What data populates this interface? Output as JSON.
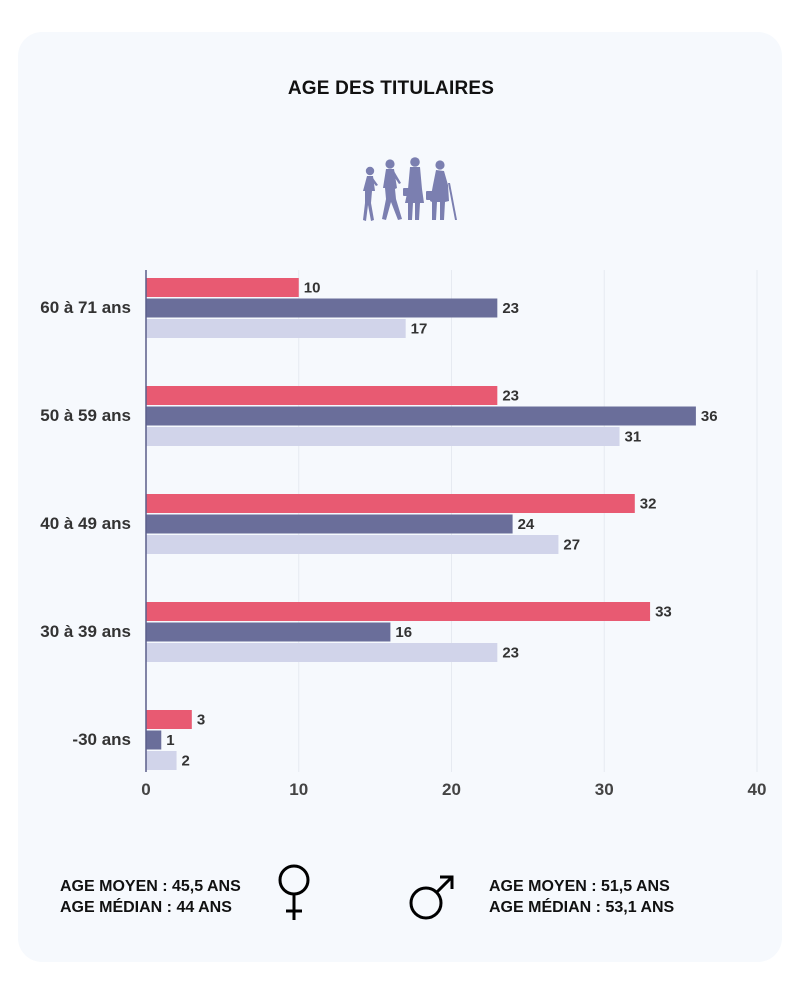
{
  "title": "AGE DES TITULAIRES",
  "people_icon": "people-walking-icon",
  "colors": {
    "series_a": "#e85a72",
    "series_b": "#6a6e9a",
    "series_c": "#d1d4ea",
    "text": "#333333",
    "tick": "#444444"
  },
  "chart_data": {
    "type": "bar",
    "orientation": "horizontal",
    "categories": [
      "60 à 71 ans",
      "50 à 59 ans",
      "40 à 49 ans",
      "30 à 39 ans",
      "-30 ans"
    ],
    "series": [
      {
        "values": [
          10,
          23,
          32,
          33,
          3
        ],
        "color": "#e85a72"
      },
      {
        "values": [
          23,
          36,
          24,
          16,
          1
        ],
        "color": "#6a6e9a"
      },
      {
        "values": [
          17,
          31,
          27,
          23,
          2
        ],
        "color": "#d1d4ea"
      }
    ],
    "xlim": [
      0,
      40
    ],
    "xticks": [
      0,
      10,
      20,
      30,
      40
    ],
    "grid": true,
    "title": "AGE DES TITULAIRES"
  },
  "stats": {
    "female": {
      "icon": "female-symbol-icon",
      "line1": "AGE MOYEN : 45,5 ANS",
      "line2": "AGE MÉDIAN : 44 ANS"
    },
    "male": {
      "icon": "male-symbol-icon",
      "line1": "AGE MOYEN : 51,5 ANS",
      "line2": "AGE MÉDIAN : 53,1 ANS"
    }
  }
}
